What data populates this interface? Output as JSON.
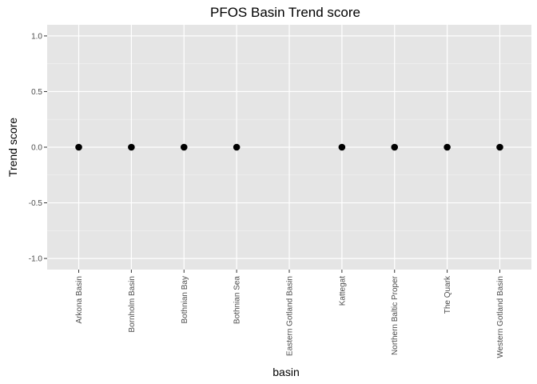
{
  "chart_data": {
    "type": "scatter",
    "title": "PFOS Basin Trend score",
    "xlabel": "basin",
    "ylabel": "Trend score",
    "categories": [
      "Arkona Basin",
      "Bornholm Basin",
      "Bothnian Bay",
      "Bothnian Sea",
      "Eastern Gotland Basin",
      "Kattegat",
      "Northern Baltic Proper",
      "The Quark",
      "Western Gotland Basin"
    ],
    "values": [
      0,
      0,
      0,
      0,
      null,
      0,
      0,
      0,
      0
    ],
    "ylim": [
      -1.1,
      1.1
    ],
    "y_ticks": [
      -1.0,
      -0.5,
      0.0,
      0.5,
      1.0
    ],
    "y_tick_labels": [
      "-1.0",
      "-0.5",
      "0.0",
      "0.5",
      "1.0"
    ],
    "grid": true,
    "legend": "none",
    "colors": {
      "panel_background": "#e5e5e5",
      "grid_major": "#ffffff",
      "grid_minor": "#f2f2f2",
      "point": "#000000",
      "tick": "#333333"
    }
  }
}
